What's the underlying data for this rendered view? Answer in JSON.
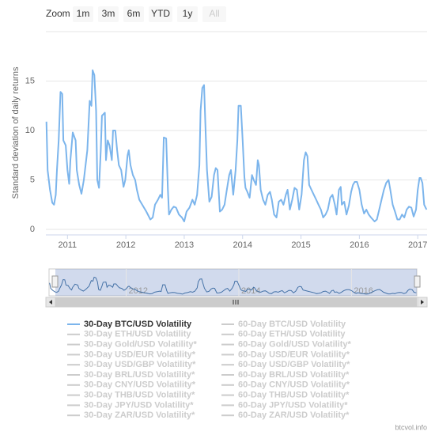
{
  "chart_data": {
    "type": "line",
    "zoom": {
      "label": "Zoom",
      "buttons": [
        "1m",
        "3m",
        "6m",
        "YTD",
        "1y",
        "All"
      ],
      "selected": 5
    },
    "y_axis_label": "Standard deviation of daily returns",
    "xlim": [
      2010.63,
      2017.16
    ],
    "xticks": [
      2011,
      2012,
      2013,
      2014,
      2015,
      2016,
      2017
    ],
    "ylim": [
      0,
      20
    ],
    "yticks": [
      0,
      5,
      10,
      15
    ],
    "grid": true,
    "navigator": {
      "xticks": [
        2012,
        2014,
        2016
      ]
    },
    "x": [
      2010.64,
      2010.66,
      2010.7,
      2010.74,
      2010.77,
      2010.8,
      2010.82,
      2010.85,
      2010.88,
      2010.91,
      2010.93,
      2010.97,
      2011.0,
      2011.03,
      2011.05,
      2011.09,
      2011.14,
      2011.16,
      2011.2,
      2011.24,
      2011.28,
      2011.34,
      2011.38,
      2011.41,
      2011.43,
      2011.46,
      2011.49,
      2011.51,
      2011.54,
      2011.57,
      2011.59,
      2011.64,
      2011.66,
      2011.69,
      2011.72,
      2011.76,
      2011.78,
      2011.82,
      2011.85,
      2011.88,
      2011.92,
      2011.96,
      2011.99,
      2012.03,
      2012.05,
      2012.08,
      2012.12,
      2012.16,
      2012.19,
      2012.23,
      2012.28,
      2012.35,
      2012.42,
      2012.46,
      2012.5,
      2012.55,
      2012.59,
      2012.62,
      2012.65,
      2012.69,
      2012.72,
      2012.74,
      2012.78,
      2012.82,
      2012.86,
      2012.91,
      2012.96,
      2013.0,
      2013.04,
      2013.09,
      2013.14,
      2013.18,
      2013.22,
      2013.26,
      2013.28,
      2013.31,
      2013.34,
      2013.36,
      2013.39,
      2013.43,
      2013.47,
      2013.51,
      2013.54,
      2013.57,
      2013.61,
      2013.65,
      2013.69,
      2013.73,
      2013.77,
      2013.8,
      2013.84,
      2013.88,
      2013.91,
      2013.93,
      2013.97,
      2014.0,
      2014.03,
      2014.05,
      2014.08,
      2014.12,
      2014.16,
      2014.19,
      2014.23,
      2014.26,
      2014.28,
      2014.31,
      2014.35,
      2014.39,
      2014.43,
      2014.47,
      2014.5,
      2014.54,
      2014.58,
      2014.62,
      2014.66,
      2014.7,
      2014.74,
      2014.77,
      2014.81,
      2014.85,
      2014.89,
      2014.93,
      2014.97,
      2015.01,
      2015.05,
      2015.08,
      2015.11,
      2015.14,
      2015.18,
      2015.22,
      2015.26,
      2015.3,
      2015.34,
      2015.38,
      2015.42,
      2015.46,
      2015.5,
      2015.54,
      2015.58,
      2015.61,
      2015.65,
      2015.68,
      2015.7,
      2015.74,
      2015.78,
      2015.82,
      2015.86,
      2015.89,
      2015.92,
      2015.96,
      2016.0,
      2016.04,
      2016.08,
      2016.12,
      2016.16,
      2016.2,
      2016.26,
      2016.3,
      2016.34,
      2016.38,
      2016.42,
      2016.46,
      2016.5,
      2016.53,
      2016.57,
      2016.61,
      2016.65,
      2016.69,
      2016.73,
      2016.77,
      2016.81,
      2016.85,
      2016.89,
      2016.93,
      2016.97,
      2017.0,
      2017.03,
      2017.05,
      2017.08,
      2017.11,
      2017.15
    ],
    "series": [
      {
        "name": "30-Day BTC/USD Volatility",
        "color": "#7cb5ec",
        "values": [
          10.9,
          6,
          4,
          2.7,
          2.5,
          3.5,
          6,
          9,
          13.9,
          13.7,
          9,
          8.5,
          6,
          4.6,
          7,
          9.8,
          9,
          6,
          4.5,
          3.6,
          5,
          8,
          13,
          12.5,
          16.1,
          15.6,
          12,
          5,
          4.2,
          8,
          11.5,
          11.8,
          7,
          9,
          8.5,
          7,
          10,
          10,
          8,
          6.5,
          6,
          4.3,
          5,
          7.5,
          8,
          6.5,
          5.5,
          5,
          4,
          3,
          2.5,
          1.8,
          1,
          1.2,
          2.5,
          3,
          3.5,
          3.2,
          9.3,
          9.2,
          4,
          1.5,
          2,
          2.3,
          2.2,
          1.5,
          1.2,
          0.8,
          1.8,
          2.2,
          3,
          2.5,
          3.5,
          6.5,
          12,
          14.3,
          14.6,
          11,
          6,
          2.8,
          3.3,
          5.5,
          6.2,
          6,
          1.8,
          2,
          2.5,
          4,
          5.5,
          6,
          3.5,
          6,
          9,
          12.5,
          12.5,
          9,
          5.3,
          4.2,
          3.8,
          3.2,
          5.5,
          5,
          4.5,
          7,
          6.5,
          4,
          3,
          2.5,
          3.5,
          3.8,
          3,
          1.5,
          1.2,
          2.8,
          3,
          2.5,
          3.5,
          4,
          2,
          3,
          4.2,
          4,
          2,
          3.5,
          7,
          7.8,
          7.4,
          4.5,
          4,
          3.5,
          3,
          2.5,
          2,
          1.2,
          1.5,
          2,
          3.2,
          3.5,
          2.5,
          1.5,
          4,
          4.3,
          2.5,
          2.8,
          1.5,
          2.4,
          3.8,
          4.5,
          4.8,
          4.8,
          4,
          2.5,
          1.6,
          2,
          1.5,
          1.2,
          0.8,
          1,
          2,
          3,
          4,
          4.7,
          5,
          4,
          2.5,
          1.8,
          1,
          1,
          1.5,
          1.2,
          2,
          2.3,
          2.2,
          1.3,
          2,
          4,
          5.2,
          5.2,
          4.7,
          2.5,
          2
        ]
      }
    ],
    "legend": {
      "hidden": [
        "60-Day BTC/USD Volatility",
        "30-Day ETH/USD Volatility",
        "60-Day ETH/USD Volatility",
        "30-Day Gold/USD Volatility*",
        "60-Day Gold/USD Volatility*",
        "30-Day USD/EUR Volatility*",
        "60-Day USD/EUR Volatility*",
        "30-Day USD/GBP Volatility*",
        "60-Day USD/GBP Volatility*",
        "30-Day BRL/USD Volatility*",
        "60-Day BRL/USD Volatility*",
        "30-Day CNY/USD Volatility*",
        "60-Day CNY/USD Volatility*",
        "30-Day THB/USD Volatility*",
        "60-Day THB/USD Volatility*",
        "30-Day JPY/USD Volatility*",
        "60-Day JPY/USD Volatility*",
        "30-Day ZAR/USD Volatility*",
        "60-Day ZAR/USD Volatility*"
      ],
      "hidden_color": "#cccccc"
    },
    "credit": "btcvol.info"
  }
}
